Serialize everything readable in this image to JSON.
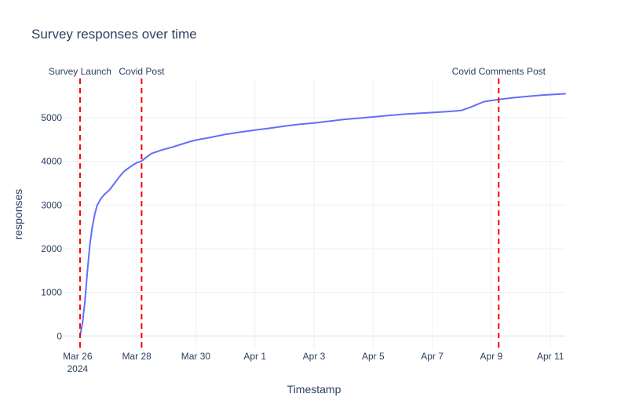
{
  "chart_data": {
    "type": "line",
    "title": "Survey responses over time",
    "xlabel": "Timestamp",
    "ylabel": "responses",
    "x_start_label": "2024-03-25 12:00",
    "x_end_label": "2024-04-11 12:00",
    "ylim": [
      -300,
      5900
    ],
    "grid": true,
    "line_color": "#636efa",
    "x_ticks": [
      {
        "date": "2024-03-26",
        "label": "Mar 26",
        "sublabel": "2024"
      },
      {
        "date": "2024-03-28",
        "label": "Mar 28",
        "sublabel": ""
      },
      {
        "date": "2024-03-30",
        "label": "Mar 30",
        "sublabel": ""
      },
      {
        "date": "2024-04-01",
        "label": "Apr 1",
        "sublabel": ""
      },
      {
        "date": "2024-04-03",
        "label": "Apr 3",
        "sublabel": ""
      },
      {
        "date": "2024-04-05",
        "label": "Apr 5",
        "sublabel": ""
      },
      {
        "date": "2024-04-07",
        "label": "Apr 7",
        "sublabel": ""
      },
      {
        "date": "2024-04-09",
        "label": "Apr 9",
        "sublabel": ""
      },
      {
        "date": "2024-04-11",
        "label": "Apr 11",
        "sublabel": ""
      }
    ],
    "y_ticks": [
      {
        "value": 0,
        "label": "0"
      },
      {
        "value": 1000,
        "label": "1000"
      },
      {
        "value": 2000,
        "label": "2000"
      },
      {
        "value": 3000,
        "label": "3000"
      },
      {
        "value": 4000,
        "label": "4000"
      },
      {
        "value": 5000,
        "label": "5000"
      }
    ],
    "annotations": [
      {
        "date": "2024-03-26 02:00",
        "label": "Survey Launch",
        "color": "#ff0000"
      },
      {
        "date": "2024-03-28 04:00",
        "label": "Covid Post",
        "color": "#ff0000"
      },
      {
        "date": "2024-04-09 06:00",
        "label": "Covid Comments Post",
        "color": "#ff0000"
      }
    ],
    "series": [
      {
        "x": [
          "2024-03-26 02:00",
          "2024-03-26 04:00",
          "2024-03-26 06:00",
          "2024-03-26 08:00",
          "2024-03-26 10:00",
          "2024-03-26 12:00",
          "2024-03-26 14:00",
          "2024-03-26 16:00",
          "2024-03-26 19:00",
          "2024-03-26 22:00",
          "2024-03-27 02:00",
          "2024-03-27 06:00",
          "2024-03-27 10:00",
          "2024-03-27 14:00",
          "2024-03-27 20:00",
          "2024-03-28 00:00",
          "2024-03-28 04:00",
          "2024-03-28 08:00",
          "2024-03-28 12:00",
          "2024-03-28 20:00",
          "2024-03-29 04:00",
          "2024-03-29 12:00",
          "2024-03-29 20:00",
          "2024-03-30 00:00",
          "2024-03-30 12:00",
          "2024-03-31 00:00",
          "2024-03-31 12:00",
          "2024-04-01 00:00",
          "2024-04-01 12:00",
          "2024-04-02 00:00",
          "2024-04-02 12:00",
          "2024-04-03 00:00",
          "2024-04-03 12:00",
          "2024-04-04 00:00",
          "2024-04-04 12:00",
          "2024-04-05 00:00",
          "2024-04-05 12:00",
          "2024-04-06 00:00",
          "2024-04-06 12:00",
          "2024-04-07 00:00",
          "2024-04-07 12:00",
          "2024-04-07 20:00",
          "2024-04-08 00:00",
          "2024-04-08 06:00",
          "2024-04-08 12:00",
          "2024-04-08 18:00",
          "2024-04-09 06:00",
          "2024-04-09 18:00",
          "2024-04-10 06:00",
          "2024-04-10 18:00",
          "2024-04-11 06:00",
          "2024-04-11 12:00"
        ],
        "y": [
          0,
          300,
          800,
          1500,
          2100,
          2500,
          2800,
          3000,
          3150,
          3250,
          3350,
          3500,
          3650,
          3780,
          3900,
          3970,
          4010,
          4100,
          4180,
          4260,
          4320,
          4390,
          4460,
          4490,
          4550,
          4620,
          4670,
          4720,
          4760,
          4810,
          4850,
          4880,
          4920,
          4960,
          4990,
          5020,
          5050,
          5080,
          5100,
          5120,
          5140,
          5160,
          5170,
          5230,
          5300,
          5370,
          5420,
          5460,
          5490,
          5520,
          5540,
          5550
        ]
      }
    ]
  }
}
